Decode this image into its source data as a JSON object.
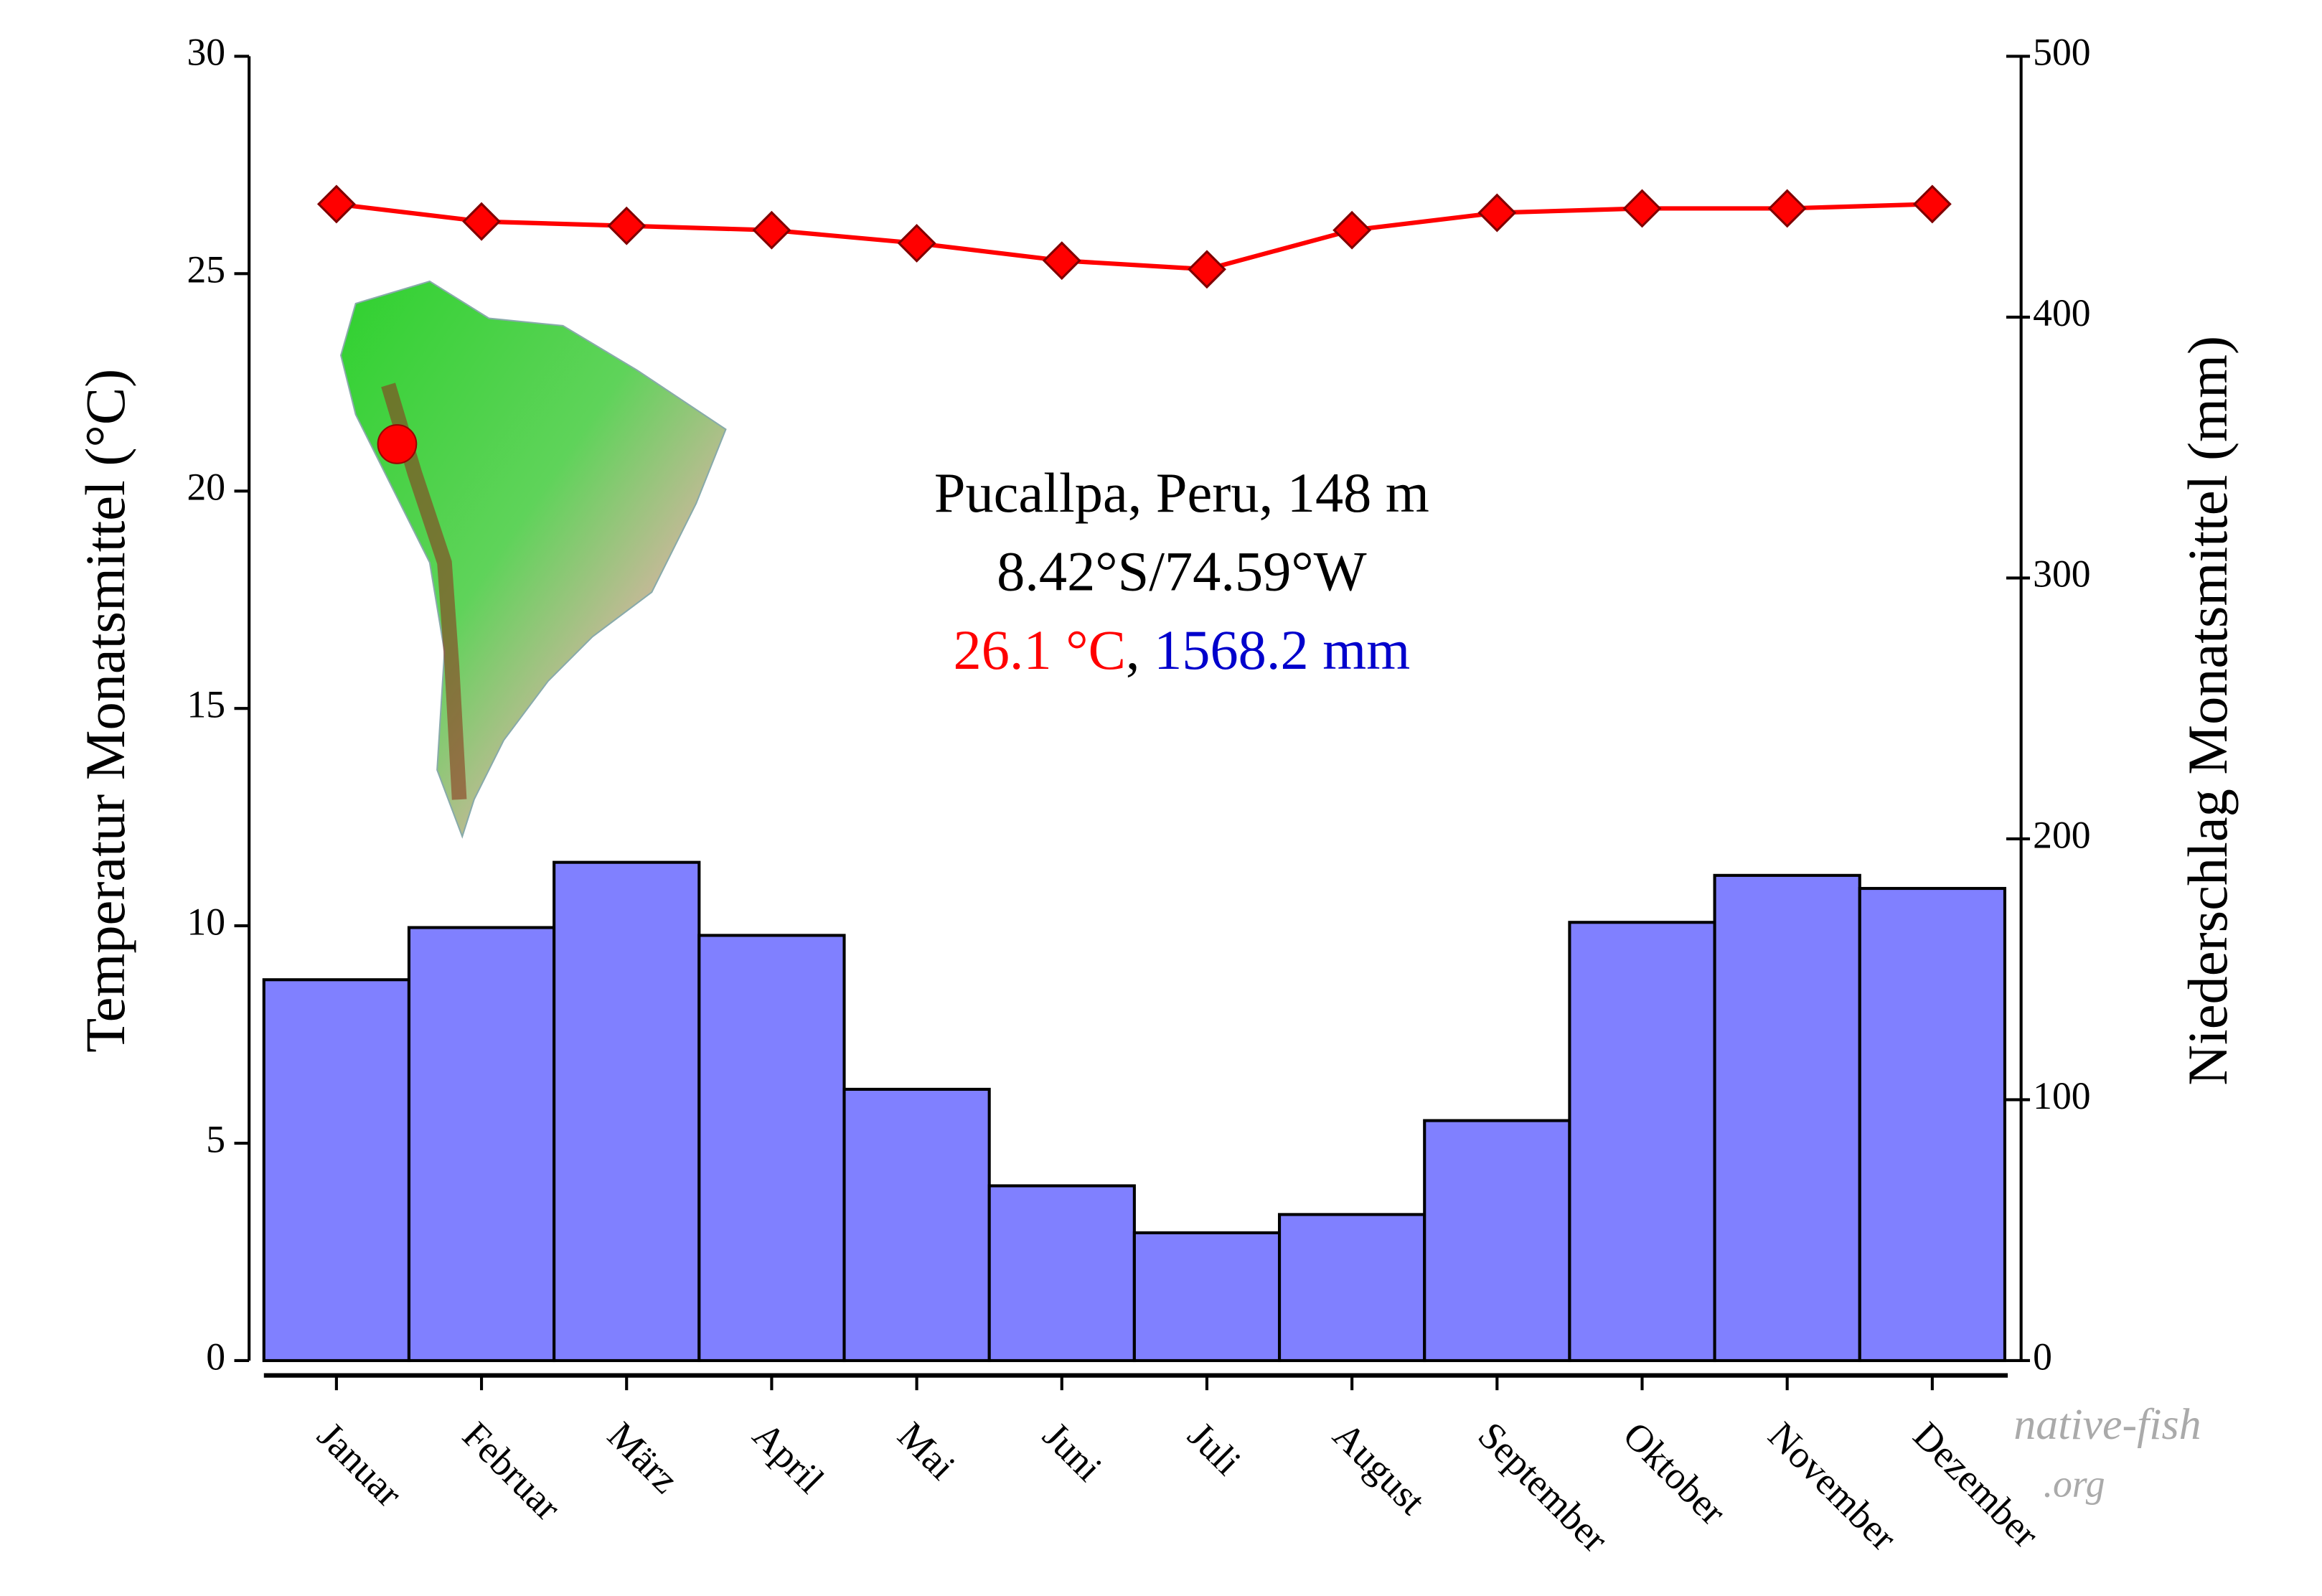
{
  "chart_data": {
    "type": "combo",
    "y_label": "Temperatur Monatsmittel (°C)",
    "y2_label": "Niederschlag Monatsmittel (mm)",
    "annotations": {
      "place": "Pucallpa, Peru, 148 m",
      "coords": "8.42°S/74.59°W",
      "temp_mean": "26.1 °C",
      "separator": ",",
      "precip_mean": "1568.2 mm"
    },
    "watermark": {
      "name": "native-fish",
      "domain": ".org"
    },
    "categories": [
      "Januar",
      "Februar",
      "März",
      "April",
      "Mai",
      "Juni",
      "Juli",
      "August",
      "September",
      "Oktober",
      "November",
      "Dezember"
    ],
    "series": [
      {
        "type": "bar",
        "axis": "y2",
        "color": "#8080ff",
        "values": [
          146,
          166,
          191,
          163,
          104,
          67,
          49,
          56,
          92,
          168,
          186,
          181
        ]
      },
      {
        "type": "line",
        "axis": "y",
        "color": "#ff0000",
        "values": [
          26.6,
          26.2,
          26.1,
          26.0,
          25.7,
          25.3,
          25.1,
          26.0,
          26.4,
          26.5,
          26.5,
          26.6
        ]
      }
    ],
    "ylim": [
      0,
      30
    ],
    "yticks": [
      0,
      5,
      10,
      15,
      20,
      25,
      30
    ],
    "y2lim": [
      0,
      500
    ],
    "y2ticks": [
      0,
      100,
      200,
      300,
      400,
      500
    ]
  }
}
